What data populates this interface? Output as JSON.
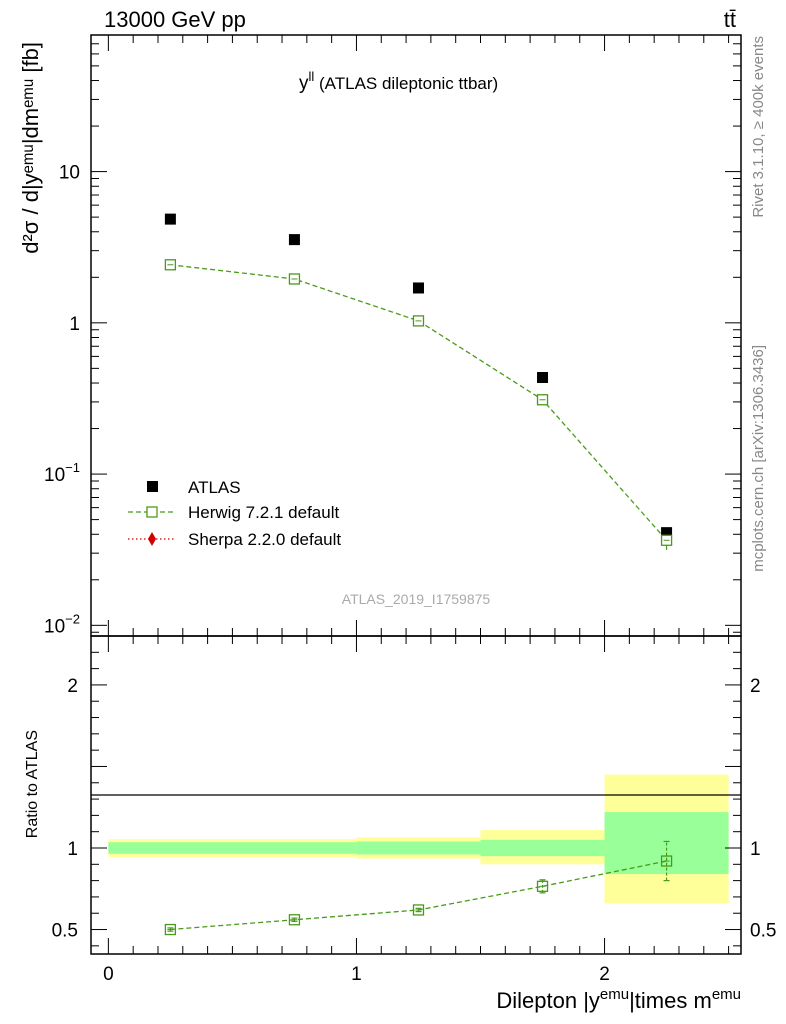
{
  "header": {
    "beam_label": "13000 GeV pp",
    "process_label": "tt̄"
  },
  "side_labels": {
    "rivet": "Rivet 3.1.10, ≥ 400k events",
    "mcplots": "mcplots.cern.ch [arXiv:1306.3436]"
  },
  "chart_data": [
    {
      "type": "scatter",
      "panel": "main",
      "title_main": "y",
      "title_sup": "ll",
      "title_rest": " (ATLAS dileptonic ttbar)",
      "ylabel": "d²σ / d|yᵉᵐᵘ|dmᵉᵐᵘ [fb]",
      "yscale": "log",
      "ylim": [
        0.0085,
        80
      ],
      "xlim": [
        -0.07,
        2.55
      ],
      "yticks": [
        {
          "v": 10,
          "base": "10",
          "exp": ""
        },
        {
          "v": 1,
          "base": "1",
          "exp": ""
        },
        {
          "v": 0.1,
          "base": "10",
          "exp": "−1"
        },
        {
          "v": 0.01,
          "base": "10",
          "exp": "−2"
        }
      ],
      "watermark": "ATLAS_2019_I1759875",
      "legend_position": "left",
      "series": [
        {
          "name": "ATLAS",
          "color": "#000000",
          "marker": "filled-square",
          "x": [
            0.25,
            0.75,
            1.25,
            1.75,
            2.25
          ],
          "y": [
            4.85,
            3.55,
            1.7,
            0.435,
            0.041
          ],
          "xerr": 0.25
        },
        {
          "name": "Herwig 7.2.1 default",
          "color": "#4a9a1a",
          "marker": "open-square",
          "linestyle": "dashed",
          "x": [
            0.25,
            0.75,
            1.25,
            1.75,
            2.25
          ],
          "y": [
            2.42,
            1.95,
            1.03,
            0.31,
            0.0365
          ],
          "yerr_low": [
            0.02,
            0.02,
            0.01,
            0.01,
            0.005
          ],
          "yerr_high": [
            0.02,
            0.02,
            0.01,
            0.01,
            0.003
          ]
        },
        {
          "name": "Sherpa 2.2.0 default",
          "color": "#d10000",
          "marker": "diamond",
          "linestyle": "dotted",
          "x": [],
          "y": []
        }
      ]
    },
    {
      "type": "scatter",
      "panel": "ratio",
      "ylabel": "Ratio to ATLAS",
      "xlabel_parts": [
        "Dilepton |y",
        "emu",
        "|times m",
        "emu"
      ],
      "ylim": [
        0.35,
        2.3
      ],
      "xlim": [
        -0.07,
        2.55
      ],
      "yticks": [
        0.5,
        1,
        2
      ],
      "xticks": [
        0,
        1,
        2
      ],
      "bands": [
        {
          "xlo": 0.0,
          "xhi": 1.0,
          "stat": [
            0.965,
            1.035
          ],
          "total": [
            0.945,
            1.055
          ]
        },
        {
          "xlo": 1.0,
          "xhi": 1.5,
          "stat": [
            0.96,
            1.04
          ],
          "total": [
            0.935,
            1.065
          ]
        },
        {
          "xlo": 1.5,
          "xhi": 2.0,
          "stat": [
            0.95,
            1.05
          ],
          "total": [
            0.9,
            1.11
          ]
        },
        {
          "xlo": 2.0,
          "xhi": 2.5,
          "stat": [
            0.84,
            1.22
          ],
          "total": [
            0.66,
            1.45
          ]
        }
      ],
      "band_colors": {
        "stat": "#99ff99",
        "total": "#ffff99"
      },
      "series": [
        {
          "name": "Herwig 7.2.1 default",
          "color": "#4a9a1a",
          "x": [
            0.25,
            0.75,
            1.25,
            1.75,
            2.25
          ],
          "y": [
            0.5,
            0.56,
            0.62,
            0.765,
            0.92
          ],
          "yerr_low": [
            0.01,
            0.01,
            0.01,
            0.04,
            0.12
          ],
          "yerr_high": [
            0.01,
            0.01,
            0.01,
            0.04,
            0.12
          ]
        }
      ]
    }
  ]
}
